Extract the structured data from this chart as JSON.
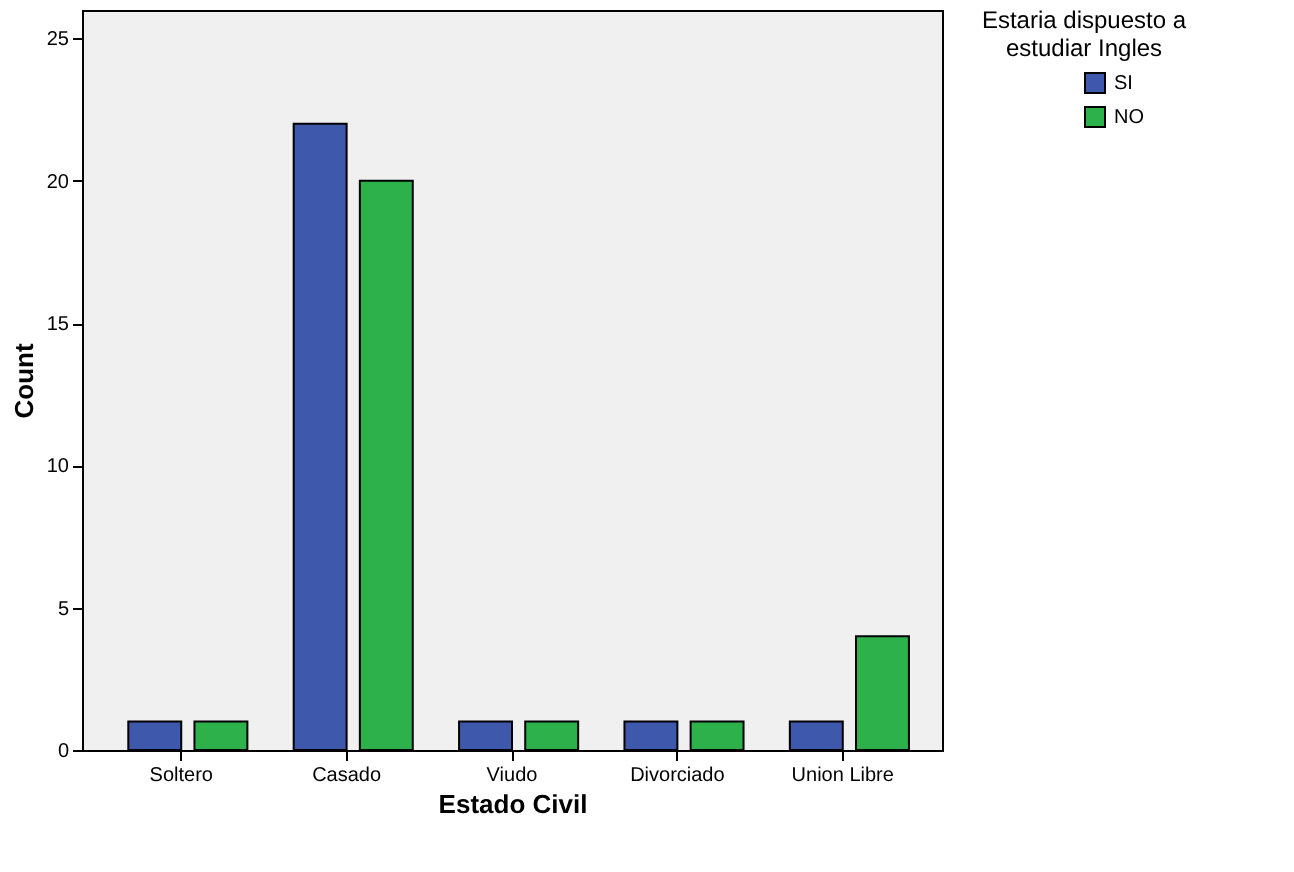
{
  "chart_data": {
    "type": "bar",
    "xlabel": "Estado Civil",
    "ylabel": "Count",
    "legend_title": "Estaria dispuesto a estudiar Ingles",
    "categories": [
      "Soltero",
      "Casado",
      "Viudo",
      "Divorciado",
      "Union Libre"
    ],
    "series": [
      {
        "name": "SI",
        "color": "#3e58ac",
        "values": [
          1,
          22,
          1,
          1,
          1
        ]
      },
      {
        "name": "NO",
        "color": "#2db14b",
        "values": [
          1,
          20,
          1,
          1,
          4
        ]
      }
    ],
    "ylim": [
      0,
      26
    ],
    "yticks": [
      0,
      5,
      10,
      15,
      20,
      25
    ],
    "grid": false,
    "legend": "right"
  }
}
